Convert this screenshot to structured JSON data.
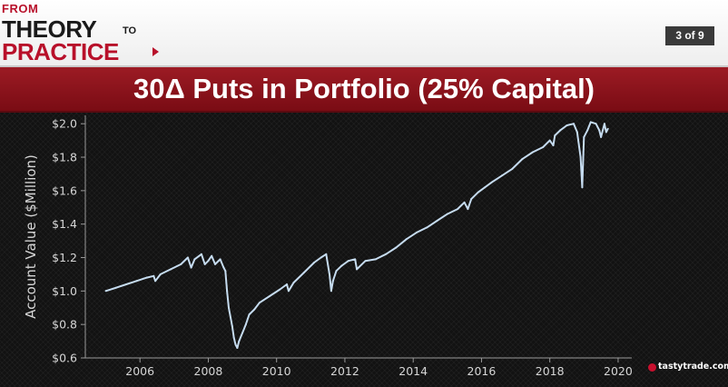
{
  "header": {
    "logo_line1": "FROM",
    "logo_line2": "THEORY",
    "logo_line2_small": "TO",
    "logo_line3": "PRACTICE",
    "page_indicator": "3 of 9"
  },
  "title": "30Δ Puts in Portfolio (25% Capital)",
  "brand": "tastytrade.com",
  "colors": {
    "accent": "#8b1420",
    "line": "#c6dcf0",
    "background": "#141414"
  },
  "chart_data": {
    "type": "line",
    "title": "30Δ Puts in Portfolio (25% Capital)",
    "xlabel": "",
    "ylabel": "Account Value ($Million)",
    "xlim": [
      2004.4,
      2020.4
    ],
    "ylim": [
      0.6,
      2.05
    ],
    "xticks": [
      "2006",
      "2008",
      "2010",
      "2012",
      "2014",
      "2016",
      "2018",
      "2020"
    ],
    "yticks": [
      "$0.6",
      "$0.8",
      "$1.0",
      "$1.2",
      "$1.4",
      "$1.6",
      "$1.8",
      "$2.0"
    ],
    "grid": false,
    "series": [
      {
        "name": "",
        "x": [
          2005.0,
          2005.3,
          2005.6,
          2005.9,
          2006.2,
          2006.4,
          2006.45,
          2006.6,
          2006.9,
          2007.2,
          2007.4,
          2007.5,
          2007.6,
          2007.8,
          2007.9,
          2008.0,
          2008.1,
          2008.2,
          2008.35,
          2008.45,
          2008.5,
          2008.55,
          2008.6,
          2008.7,
          2008.75,
          2008.8,
          2008.85,
          2008.9,
          2009.0,
          2009.1,
          2009.2,
          2009.35,
          2009.5,
          2009.8,
          2010.1,
          2010.3,
          2010.35,
          2010.5,
          2010.8,
          2011.1,
          2011.3,
          2011.45,
          2011.55,
          2011.6,
          2011.65,
          2011.75,
          2011.9,
          2012.1,
          2012.3,
          2012.35,
          2012.6,
          2012.9,
          2013.2,
          2013.5,
          2013.8,
          2014.1,
          2014.4,
          2014.7,
          2015.0,
          2015.3,
          2015.5,
          2015.6,
          2015.7,
          2015.9,
          2016.1,
          2016.3,
          2016.6,
          2016.9,
          2017.2,
          2017.5,
          2017.8,
          2018.0,
          2018.1,
          2018.15,
          2018.3,
          2018.5,
          2018.7,
          2018.8,
          2018.9,
          2018.95,
          2019.0,
          2019.1,
          2019.2,
          2019.35,
          2019.45,
          2019.5,
          2019.6,
          2019.65,
          2019.7
        ],
        "y": [
          1.0,
          1.02,
          1.04,
          1.06,
          1.08,
          1.09,
          1.06,
          1.1,
          1.13,
          1.16,
          1.2,
          1.14,
          1.19,
          1.22,
          1.16,
          1.18,
          1.21,
          1.16,
          1.19,
          1.14,
          1.12,
          1.0,
          0.9,
          0.79,
          0.72,
          0.68,
          0.66,
          0.7,
          0.75,
          0.8,
          0.86,
          0.89,
          0.93,
          0.97,
          1.01,
          1.04,
          1.0,
          1.05,
          1.11,
          1.17,
          1.2,
          1.22,
          1.1,
          1.0,
          1.06,
          1.12,
          1.15,
          1.18,
          1.19,
          1.13,
          1.18,
          1.19,
          1.22,
          1.26,
          1.31,
          1.35,
          1.38,
          1.42,
          1.46,
          1.49,
          1.53,
          1.49,
          1.55,
          1.59,
          1.62,
          1.65,
          1.69,
          1.73,
          1.79,
          1.83,
          1.86,
          1.9,
          1.87,
          1.93,
          1.96,
          1.99,
          2.0,
          1.95,
          1.8,
          1.62,
          1.92,
          1.96,
          2.01,
          2.0,
          1.96,
          1.92,
          2.0,
          1.95,
          1.97
        ]
      }
    ]
  }
}
